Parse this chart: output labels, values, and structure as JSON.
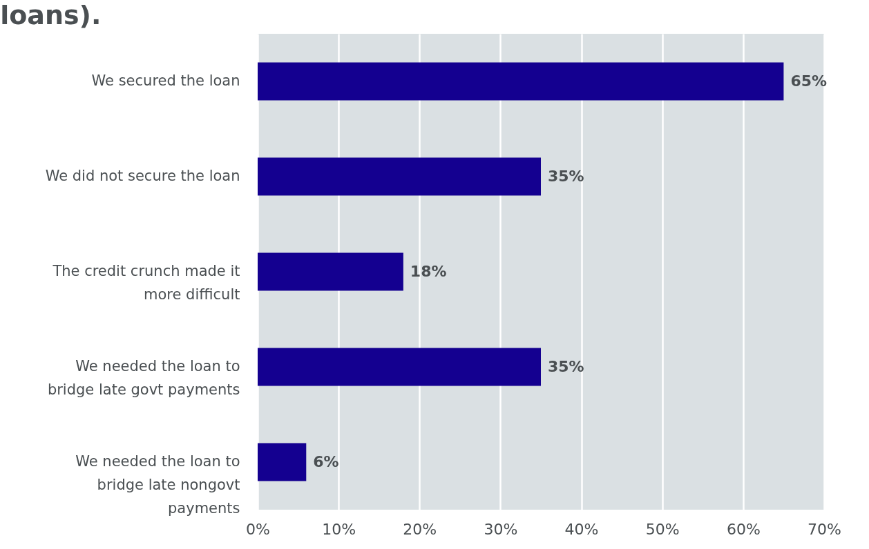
{
  "chart_data": {
    "type": "bar",
    "orientation": "horizontal",
    "title": "loans).",
    "categories": [
      "We secured the loan",
      "We did not secure the loan",
      "The credit crunch made it more difficult",
      "We needed the loan to bridge late govt payments",
      "We needed the loan to bridge late nongovt payments"
    ],
    "values": [
      65,
      35,
      18,
      35,
      6
    ],
    "color": "#140090",
    "xlim": [
      0,
      70
    ],
    "xticks": [
      {
        "value": 0,
        "label": "0%"
      },
      {
        "value": 10,
        "label": "10%"
      },
      {
        "value": 20,
        "label": "20%"
      },
      {
        "value": 30,
        "label": "30%"
      },
      {
        "value": 40,
        "label": "40%"
      },
      {
        "value": 50,
        "label": "50%"
      },
      {
        "value": 60,
        "label": "60%"
      },
      {
        "value": 70,
        "label": "70%"
      }
    ],
    "value_labels": [
      "65%",
      "35%",
      "18%",
      "35%",
      "6%"
    ],
    "grid": "x"
  }
}
